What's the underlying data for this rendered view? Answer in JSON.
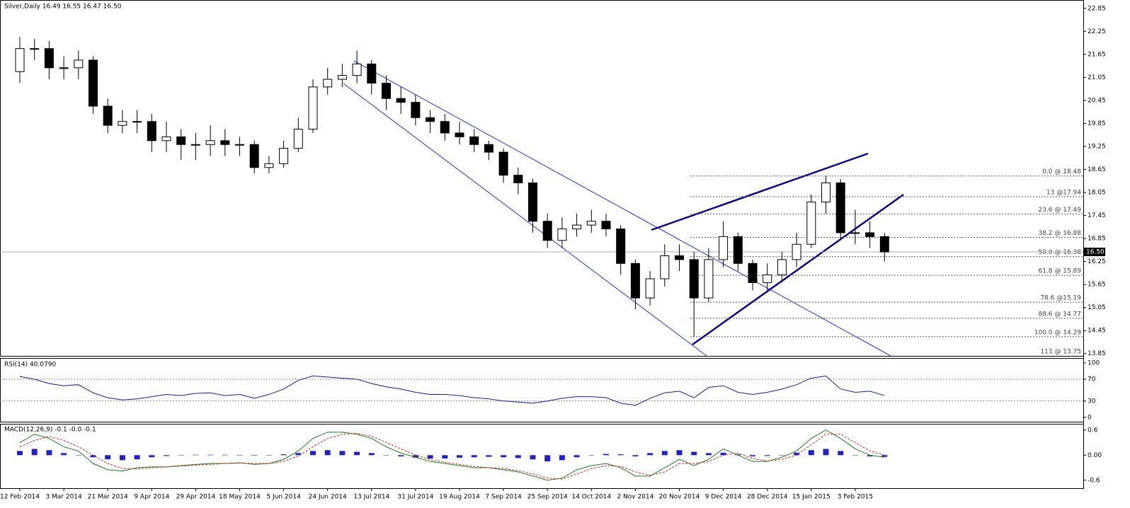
{
  "chart_data": [
    {
      "type": "candlestick",
      "title": "Silver,Daily 16.49 16.55 16.47 16.50",
      "categories": [
        "12 Feb 2014",
        null,
        null,
        "3 Mar 2014",
        null,
        null,
        "21 Mar 2014",
        null,
        null,
        "9 Apr 2014",
        null,
        null,
        "29 Apr 2014",
        null,
        null,
        "18 May 2014",
        null,
        null,
        "5 Jun 2014",
        null,
        null,
        "24 Jun 2014",
        null,
        null,
        "13 Jul 2014",
        null,
        null,
        "31 Jul 2014",
        null,
        null,
        "19 Aug 2014",
        null,
        null,
        "7 Sep 2014",
        null,
        null,
        "25 Sep 2014",
        null,
        null,
        "14 Oct 2014",
        null,
        null,
        "2 Nov 2014",
        null,
        null,
        "20 Nov 2014",
        null,
        null,
        "9 Dec 2014",
        null,
        null,
        "28 Dec 2014",
        null,
        null,
        "15 Jan 2015",
        null,
        null,
        "3 Feb 2015",
        null,
        null
      ],
      "open": [
        21.2,
        21.8,
        21.8,
        21.3,
        21.3,
        21.5,
        20.3,
        19.8,
        19.9,
        19.9,
        19.4,
        19.5,
        19.3,
        19.3,
        19.4,
        19.3,
        19.3,
        18.7,
        18.8,
        19.2,
        19.7,
        20.8,
        21.0,
        21.1,
        21.4,
        20.9,
        20.5,
        20.4,
        20.0,
        19.9,
        19.6,
        19.5,
        19.3,
        19.1,
        18.5,
        18.3,
        17.3,
        16.8,
        17.1,
        17.2,
        17.3,
        17.1,
        16.2,
        15.3,
        15.8,
        16.4,
        16.3,
        15.3,
        16.3,
        16.9,
        16.2,
        15.7,
        15.9,
        16.3,
        16.7,
        17.8,
        18.3,
        17.0,
        17.0,
        16.9
      ],
      "high": [
        22.1,
        22.05,
        22.0,
        21.6,
        21.75,
        21.6,
        20.5,
        20.2,
        20.2,
        20.1,
        19.9,
        19.7,
        19.6,
        19.8,
        19.7,
        19.5,
        19.4,
        19.0,
        19.4,
        20.0,
        21.0,
        21.3,
        21.4,
        21.75,
        21.5,
        21.1,
        20.8,
        20.6,
        20.2,
        20.1,
        19.9,
        19.7,
        19.4,
        19.2,
        18.7,
        18.4,
        17.5,
        17.4,
        17.5,
        17.6,
        17.5,
        17.2,
        16.3,
        16.0,
        16.7,
        16.7,
        16.5,
        16.6,
        17.3,
        17.0,
        16.3,
        16.2,
        16.5,
        17.0,
        18.0,
        18.48,
        18.4,
        17.6,
        17.3,
        17.0
      ],
      "low": [
        20.9,
        21.5,
        21.0,
        21.0,
        21.0,
        20.1,
        19.6,
        19.6,
        19.6,
        19.1,
        19.1,
        18.9,
        18.9,
        19.0,
        19.0,
        19.0,
        18.55,
        18.55,
        18.7,
        19.1,
        19.6,
        20.6,
        20.8,
        20.9,
        20.6,
        20.2,
        20.1,
        19.8,
        19.6,
        19.4,
        19.3,
        19.1,
        18.9,
        18.3,
        18.0,
        17.0,
        16.6,
        16.6,
        16.9,
        17.0,
        16.9,
        15.9,
        15.0,
        15.1,
        15.6,
        16.0,
        14.29,
        15.2,
        16.1,
        16.0,
        15.5,
        15.5,
        15.7,
        16.1,
        16.6,
        17.5,
        16.8,
        16.7,
        16.6,
        16.25
      ],
      "close": [
        21.8,
        21.8,
        21.3,
        21.3,
        21.5,
        20.3,
        19.8,
        19.9,
        19.9,
        19.4,
        19.5,
        19.3,
        19.3,
        19.4,
        19.3,
        19.3,
        18.7,
        18.8,
        19.2,
        19.7,
        20.8,
        21.0,
        21.1,
        21.4,
        20.9,
        20.5,
        20.4,
        20.0,
        19.9,
        19.6,
        19.5,
        19.3,
        19.1,
        18.5,
        18.3,
        17.3,
        16.8,
        17.1,
        17.2,
        17.3,
        17.1,
        16.2,
        15.3,
        15.8,
        16.4,
        16.3,
        15.3,
        16.3,
        16.9,
        16.2,
        15.7,
        15.9,
        16.3,
        16.7,
        17.8,
        18.3,
        17.0,
        17.0,
        16.9,
        16.5
      ],
      "ylim": [
        13.79,
        23.03
      ],
      "yticks": [
        22.85,
        22.25,
        21.65,
        21.05,
        20.45,
        19.85,
        19.25,
        18.65,
        18.05,
        17.45,
        16.85,
        16.25,
        15.65,
        15.05,
        14.45,
        13.85
      ],
      "last_price": {
        "value": 16.5,
        "label": "16.50"
      },
      "fib_levels": [
        {
          "value": 18.48,
          "label": "0.0 @ 18.48"
        },
        {
          "value": 17.94,
          "label": "13 @17.94"
        },
        {
          "value": 17.49,
          "label": "23.6 @ 17.49"
        },
        {
          "value": 16.88,
          "label": "38.2 @ 16.88"
        },
        {
          "value": 16.38,
          "label": "50.0 @ 16.38"
        },
        {
          "value": 15.89,
          "label": "61.8 @ 15.89"
        },
        {
          "value": 15.19,
          "label": "78.6 @15.19"
        },
        {
          "value": 14.77,
          "label": "88.6 @ 14.77"
        },
        {
          "value": 14.29,
          "label": "100.0 @ 14.29"
        },
        {
          "value": 13.75,
          "label": "113 @ 13.75"
        }
      ],
      "up_color": "#ffffff",
      "down_color": "#000000"
    },
    {
      "type": "line",
      "title": "RSI(14) 40.0790",
      "values": [
        75,
        70,
        62,
        58,
        60,
        45,
        36,
        32,
        34,
        38,
        42,
        40,
        44,
        45,
        40,
        42,
        35,
        42,
        52,
        68,
        76,
        74,
        72,
        70,
        62,
        56,
        52,
        46,
        42,
        42,
        40,
        36,
        34,
        30,
        28,
        26,
        30,
        35,
        38,
        38,
        36,
        26,
        22,
        35,
        45,
        48,
        36,
        55,
        58,
        46,
        42,
        46,
        52,
        60,
        72,
        76,
        52,
        46,
        48,
        40
      ],
      "color": "#1a1a9a",
      "ylim": [
        -8,
        109
      ],
      "yticks": [
        100,
        70,
        30,
        0
      ],
      "levels": [
        70,
        30
      ]
    },
    {
      "type": "macd",
      "title": "MACD(12,26,9) -0.1 -0.0 -0.1",
      "series": [
        {
          "color": "#2222bb",
          "values": [
            0.1,
            0.15,
            0.12,
            0.05,
            0.0,
            -0.05,
            -0.1,
            -0.12,
            -0.1,
            -0.05,
            -0.02,
            0.0,
            0.01,
            0.01,
            0.01,
            0.0,
            -0.01,
            0.0,
            0.02,
            0.05,
            0.1,
            0.12,
            0.1,
            0.08,
            0.05,
            0.0,
            -0.03,
            -0.06,
            -0.08,
            -0.08,
            -0.06,
            -0.05,
            -0.04,
            -0.05,
            -0.07,
            -0.1,
            -0.15,
            -0.12,
            -0.05,
            0.0,
            0.03,
            0.02,
            -0.03,
            0.05,
            0.1,
            0.12,
            0.08,
            0.05,
            0.06,
            0.02,
            -0.03,
            -0.02,
            0.0,
            0.06,
            0.12,
            0.15,
            0.1,
            0.0,
            -0.03,
            -0.04
          ]
        },
        {
          "color": "#1f7a1f",
          "values": [
            0.3,
            0.5,
            0.4,
            0.2,
            0.1,
            -0.2,
            -0.35,
            -0.38,
            -0.3,
            -0.28,
            -0.28,
            -0.25,
            -0.22,
            -0.2,
            -0.2,
            -0.18,
            -0.22,
            -0.2,
            -0.1,
            0.1,
            0.4,
            0.55,
            0.55,
            0.5,
            0.4,
            0.2,
            0.05,
            -0.05,
            -0.15,
            -0.2,
            -0.25,
            -0.3,
            -0.3,
            -0.35,
            -0.4,
            -0.5,
            -0.6,
            -0.55,
            -0.35,
            -0.25,
            -0.2,
            -0.3,
            -0.5,
            -0.5,
            -0.3,
            -0.1,
            -0.25,
            -0.1,
            0.15,
            0.0,
            -0.15,
            -0.15,
            -0.05,
            0.1,
            0.4,
            0.6,
            0.4,
            0.15,
            0.0,
            -0.05
          ]
        },
        {
          "color": "#e02020",
          "values": [
            0.2,
            0.35,
            0.45,
            0.35,
            0.2,
            0.0,
            -0.2,
            -0.32,
            -0.33,
            -0.3,
            -0.28,
            -0.26,
            -0.24,
            -0.22,
            -0.2,
            -0.19,
            -0.2,
            -0.2,
            -0.15,
            -0.02,
            0.2,
            0.4,
            0.5,
            0.52,
            0.45,
            0.3,
            0.15,
            0.0,
            -0.1,
            -0.17,
            -0.22,
            -0.27,
            -0.3,
            -0.32,
            -0.37,
            -0.45,
            -0.55,
            -0.57,
            -0.45,
            -0.32,
            -0.25,
            -0.27,
            -0.4,
            -0.48,
            -0.4,
            -0.2,
            -0.2,
            -0.15,
            0.0,
            0.05,
            -0.08,
            -0.14,
            -0.1,
            0.0,
            0.25,
            0.5,
            0.5,
            0.3,
            0.1,
            0.0
          ]
        }
      ],
      "ylim": [
        -0.79,
        0.75
      ],
      "yticks": [
        0.6,
        {
          "value": 0,
          "label": "0.00"
        },
        -0.6
      ]
    }
  ]
}
